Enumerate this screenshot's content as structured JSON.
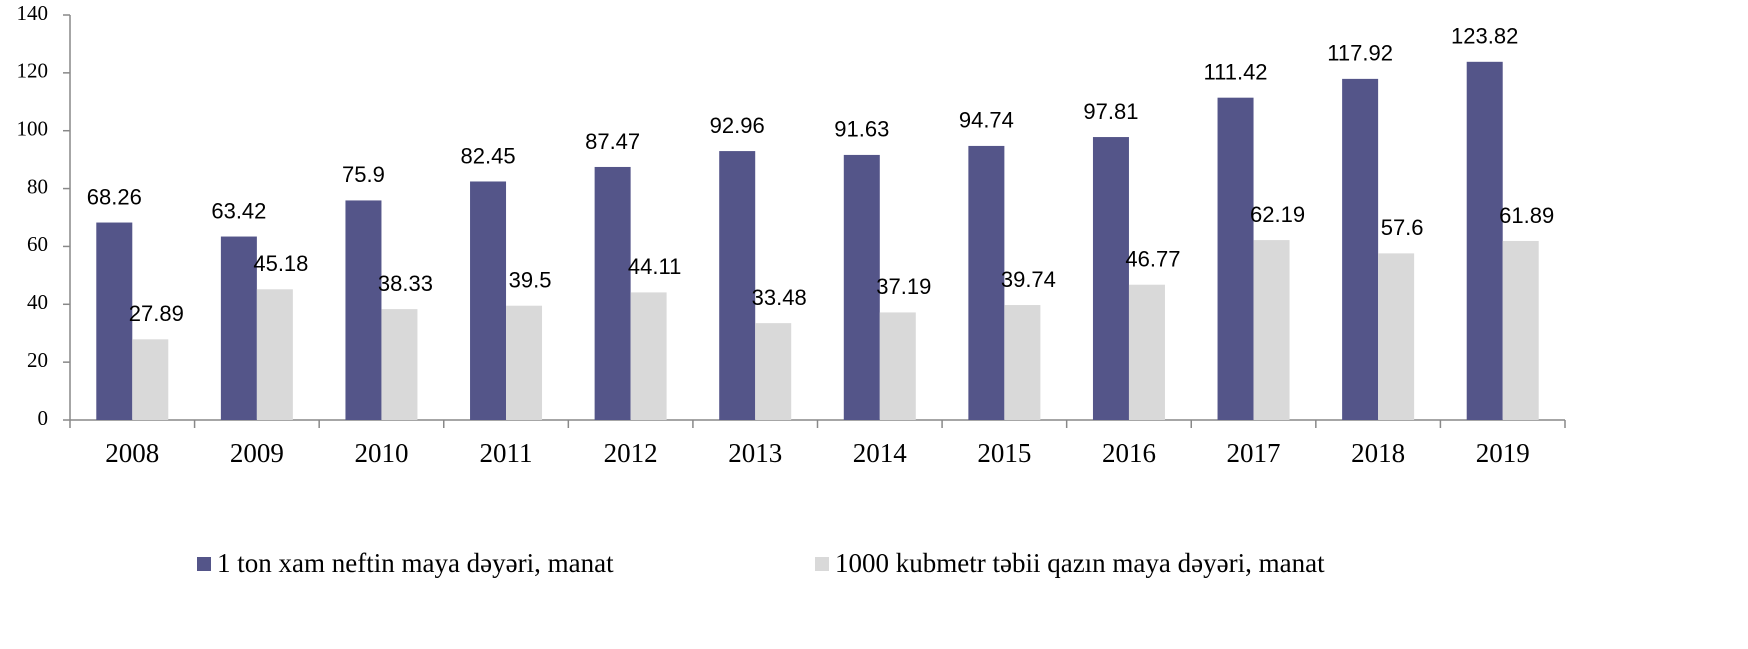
{
  "chart_data": {
    "type": "bar",
    "categories": [
      "2008",
      "2009",
      "2010",
      "2011",
      "2012",
      "2013",
      "2014",
      "2015",
      "2016",
      "2017",
      "2018",
      "2019"
    ],
    "series": [
      {
        "name": "1 ton xam neftin maya dəyəri, manat",
        "color": "#545589",
        "values": [
          68.26,
          63.42,
          75.9,
          82.45,
          87.47,
          92.96,
          91.63,
          94.74,
          97.81,
          111.42,
          117.92,
          123.82
        ]
      },
      {
        "name": "1000 kubmetr təbii qazın maya dəyəri, manat",
        "color": "#d9d9d9",
        "values": [
          27.89,
          45.18,
          38.33,
          39.5,
          44.11,
          33.48,
          37.19,
          39.74,
          46.77,
          62.19,
          57.6,
          61.89
        ]
      }
    ],
    "ylim": [
      0,
      140
    ],
    "yticks": [
      0,
      20,
      40,
      60,
      80,
      100,
      120,
      140
    ],
    "grid": false,
    "legend": "bottom"
  }
}
